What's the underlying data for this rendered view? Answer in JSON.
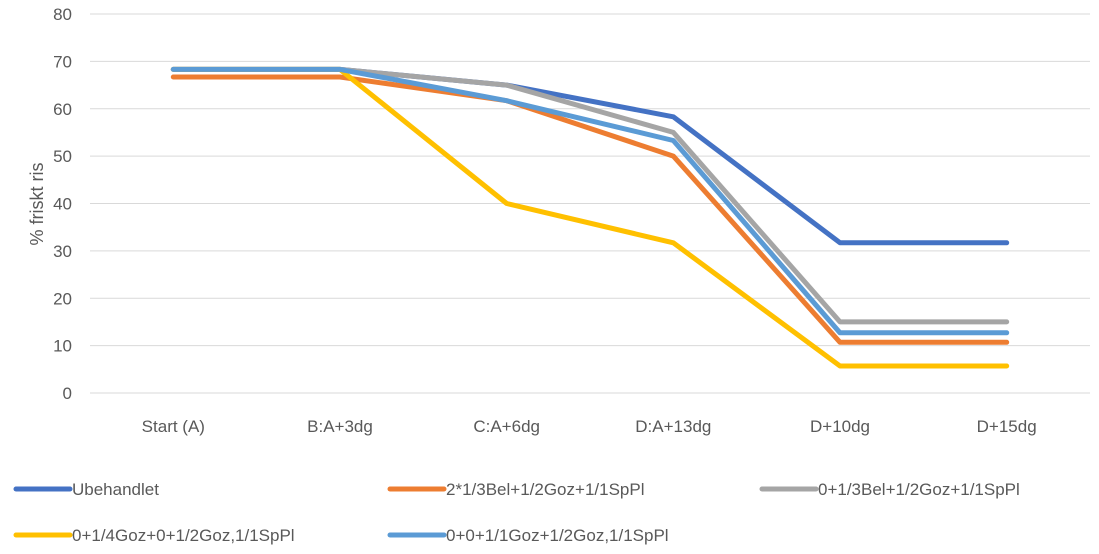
{
  "chart_data": {
    "type": "line",
    "title": "",
    "xlabel": "",
    "ylabel": "% friskt ris",
    "ylim": [
      0,
      80
    ],
    "yticks": [
      0,
      10,
      20,
      30,
      40,
      50,
      60,
      70,
      80
    ],
    "grid": "horizontal",
    "legend_position": "bottom",
    "categories": [
      "Start (A)",
      "B:A+3dg",
      "C:A+6dg",
      "D:A+13dg",
      "D+10dg",
      "D+15dg"
    ],
    "series": [
      {
        "name": "Ubehandlet",
        "color": "#4472C4",
        "values": [
          68.3,
          68.3,
          65.0,
          58.3,
          31.7,
          31.7
        ]
      },
      {
        "name": "2*1/3Bel+1/2Goz+1/1SpPl",
        "color": "#ED7D31",
        "values": [
          66.7,
          66.7,
          61.7,
          50.0,
          10.7,
          10.7
        ]
      },
      {
        "name": "0+1/3Bel+1/2Goz+1/1SpPl",
        "color": "#A5A5A5",
        "values": [
          68.3,
          68.3,
          65.0,
          55.0,
          15.0,
          15.0
        ]
      },
      {
        "name": "0+1/4Goz+0+1/2Goz,1/1SpPl",
        "color": "#FFC000",
        "values": [
          68.3,
          68.3,
          40.0,
          31.7,
          5.7,
          5.7
        ]
      },
      {
        "name": "0+0+1/1Goz+1/2Goz,1/1SpPl",
        "color": "#5B9BD5",
        "values": [
          68.3,
          68.3,
          61.7,
          53.3,
          12.7,
          12.7
        ]
      }
    ]
  }
}
